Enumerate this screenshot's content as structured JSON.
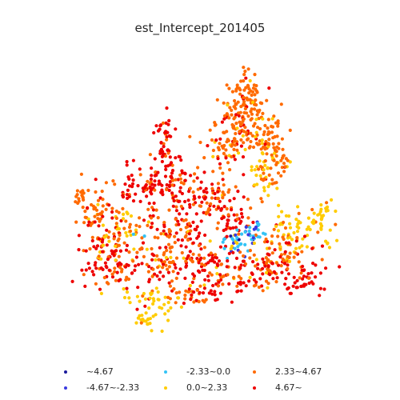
{
  "map": {
    "title": "est_Intercept_201405"
  },
  "legend": {
    "items": [
      {
        "label": "~4.67",
        "color": "#1a1a9c"
      },
      {
        "label": "-4.67~-2.33",
        "color": "#3a3ae0"
      },
      {
        "label": "-2.33~0.0",
        "color": "#33c3f5"
      },
      {
        "label": "0.0~2.33",
        "color": "#ffcc00"
      },
      {
        "label": "2.33~4.67",
        "color": "#ff6a00"
      },
      {
        "label": "4.67~",
        "color": "#ee0000"
      }
    ]
  }
}
